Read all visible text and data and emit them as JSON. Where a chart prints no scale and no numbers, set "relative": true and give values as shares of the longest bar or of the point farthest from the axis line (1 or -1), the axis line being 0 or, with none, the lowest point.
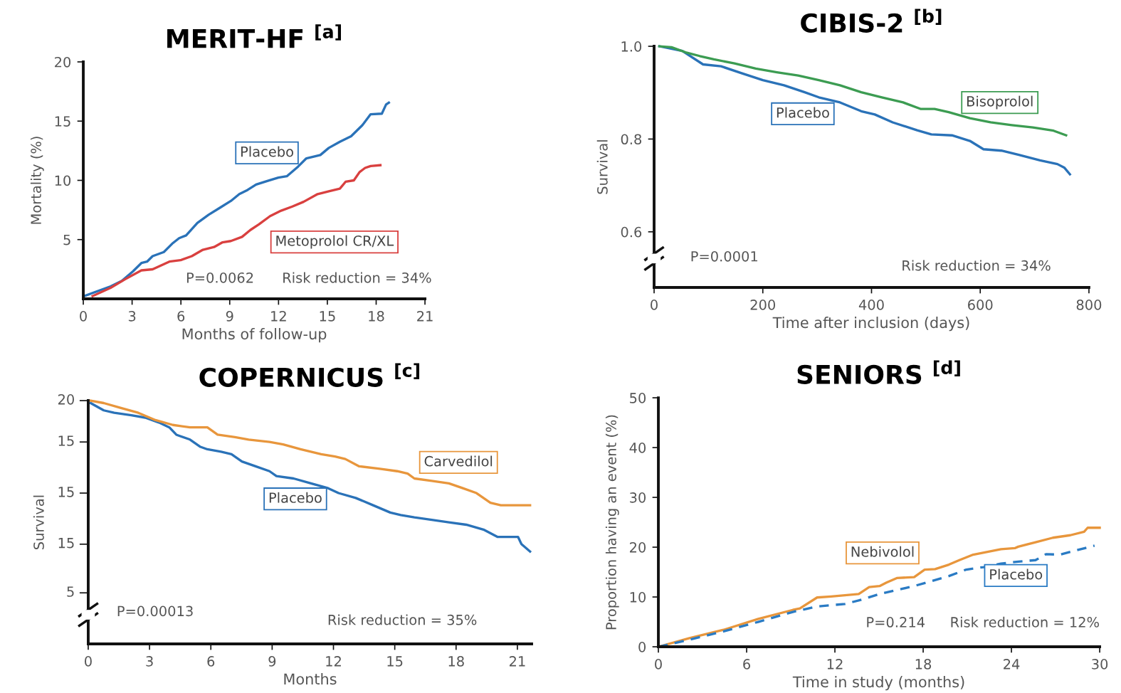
{
  "chart_data": [
    {
      "type": "line",
      "title": "MERIT-HF $^{[a]}$",
      "xlabel": "Months of follow-up",
      "ylabel": "Mortality (%)",
      "xlim": [
        0,
        21
      ],
      "ylim": [
        0,
        20
      ],
      "xticks": [
        0,
        3,
        6,
        9,
        12,
        15,
        18,
        21
      ],
      "yticks": [
        5,
        10,
        15,
        20
      ],
      "grid": false,
      "legend": false,
      "annotations": [
        "P=0.0062",
        "Risk reduction = 34%"
      ],
      "series": [
        {
          "name": "Placebo",
          "color": "#2a72b8",
          "x": [
            0,
            1.68,
            2.37,
            3.06,
            3.57,
            3.92,
            4.26,
            4.95,
            5.46,
            5.89,
            6.32,
            7.01,
            7.7,
            8.38,
            9.07,
            9.59,
            10.1,
            10.62,
            11.31,
            11.99,
            12.51,
            13.2,
            13.71,
            14.57,
            15.09,
            15.77,
            16.46,
            17.15,
            17.66,
            18.35,
            18.61,
            18.78
          ],
          "values": [
            0.2,
            1.05,
            1.51,
            2.33,
            3.02,
            3.14,
            3.6,
            3.95,
            4.65,
            5.12,
            5.35,
            6.4,
            7.09,
            7.67,
            8.26,
            8.84,
            9.19,
            9.65,
            9.95,
            10.23,
            10.35,
            11.16,
            11.86,
            12.14,
            12.74,
            13.26,
            13.72,
            14.65,
            15.58,
            15.63,
            16.4,
            16.56
          ]
        },
        {
          "name": "Metoprolol CR/XL",
          "color": "#d9403f",
          "x": [
            0.57,
            1.68,
            2.54,
            3.57,
            4.26,
            5.29,
            5.98,
            6.67,
            7.35,
            8.04,
            8.56,
            9.07,
            9.76,
            10.27,
            10.79,
            11.48,
            12.16,
            12.85,
            13.54,
            14.4,
            15.09,
            15.77,
            16.12,
            16.63,
            16.98,
            17.32,
            17.66,
            18.26
          ],
          "values": [
            0.23,
            0.93,
            1.63,
            2.4,
            2.49,
            3.14,
            3.26,
            3.6,
            4.14,
            4.37,
            4.77,
            4.88,
            5.23,
            5.81,
            6.28,
            6.98,
            7.44,
            7.79,
            8.19,
            8.84,
            9.07,
            9.3,
            9.88,
            10.0,
            10.7,
            11.05,
            11.21,
            11.28
          ]
        }
      ]
    },
    {
      "type": "line",
      "title": "CIBIS-2 $^{[b]}$",
      "xlabel": "Time after inclusion (days)",
      "ylabel": "Survival",
      "xlim": [
        0,
        800
      ],
      "ylim": [
        0.48,
        1.0
      ],
      "xticks": [
        0,
        200,
        400,
        600,
        800
      ],
      "yticks": [
        0.6,
        0.8,
        {
          "value": 1.0,
          "label": "1.0"
        }
      ],
      "grid": false,
      "legend": false,
      "annotations": [
        "P=0.0001",
        "Risk reduction = 34%"
      ],
      "series": [
        {
          "name": "Placebo",
          "color": "#2a72b8",
          "x": [
            9.7,
            52,
            90,
            123,
            161,
            200,
            239,
            277,
            303,
            342,
            381,
            406,
            439,
            484,
            510,
            548,
            581,
            606,
            639,
            671,
            710,
            742,
            755,
            765
          ],
          "values": [
            1.0,
            0.99,
            0.961,
            0.957,
            0.942,
            0.927,
            0.916,
            0.901,
            0.89,
            0.879,
            0.86,
            0.853,
            0.836,
            0.819,
            0.81,
            0.808,
            0.796,
            0.778,
            0.775,
            0.766,
            0.754,
            0.746,
            0.738,
            0.724
          ]
        },
        {
          "name": "Bisoprolol",
          "color": "#3c9c52",
          "x": [
            9.7,
            32,
            58,
            84,
            110,
            148,
            187,
            226,
            265,
            303,
            342,
            381,
            419,
            458,
            490,
            516,
            542,
            581,
            619,
            658,
            697,
            735,
            758
          ],
          "values": [
            1.0,
            0.998,
            0.987,
            0.979,
            0.972,
            0.963,
            0.952,
            0.944,
            0.937,
            0.927,
            0.916,
            0.901,
            0.89,
            0.879,
            0.865,
            0.865,
            0.858,
            0.845,
            0.836,
            0.83,
            0.825,
            0.818,
            0.808
          ]
        }
      ]
    },
    {
      "type": "line",
      "title": "COPERNICUS $^{[c]}$",
      "xlabel": "Months",
      "ylabel": "Survival",
      "relative": true,
      "xlim": [
        0,
        21.7
      ],
      "xticks": [
        0,
        3,
        6,
        9,
        12,
        15,
        18,
        21
      ],
      "grid": false,
      "legend": false,
      "annotations": [
        "P=0.00013",
        "Risk reduction = 35%",
        "20",
        "15",
        "15",
        "15",
        "5"
      ],
      "series": [
        {
          "name": "Placebo",
          "color": "#2a72b8",
          "x": [
            0.12,
            0.76,
            1.27,
            2.11,
            2.79,
            3.46,
            3.97,
            4.31,
            4.98,
            5.49,
            5.83,
            6.5,
            7.01,
            7.52,
            8.19,
            8.87,
            9.21,
            10.05,
            10.9,
            11.74,
            12.25,
            13.09,
            13.94,
            14.78,
            15.29,
            15.96,
            16.81,
            17.65,
            18.5,
            19.34,
            20.02,
            21.03,
            21.2,
            21.62
          ],
          "values": [
            0.99,
            0.96,
            0.95,
            0.94,
            0.93,
            0.91,
            0.89,
            0.86,
            0.84,
            0.81,
            0.8,
            0.79,
            0.78,
            0.75,
            0.73,
            0.71,
            0.69,
            0.68,
            0.66,
            0.64,
            0.62,
            0.6,
            0.57,
            0.54,
            0.53,
            0.52,
            0.51,
            0.5,
            0.49,
            0.47,
            0.44,
            0.44,
            0.41,
            0.38
          ]
        },
        {
          "name": "Carvedilol",
          "color": "#e8963c",
          "x": [
            0.12,
            0.76,
            1.6,
            2.45,
            3.29,
            4.14,
            4.98,
            5.83,
            6.33,
            7.18,
            7.85,
            8.87,
            9.54,
            10.39,
            11.4,
            12.08,
            12.58,
            13.26,
            14.27,
            15.12,
            15.63,
            15.96,
            16.81,
            17.65,
            18.33,
            19.0,
            19.34,
            19.68,
            20.19,
            21.62
          ],
          "values": [
            1.0,
            0.99,
            0.97,
            0.95,
            0.92,
            0.9,
            0.89,
            0.89,
            0.86,
            0.85,
            0.84,
            0.83,
            0.82,
            0.8,
            0.78,
            0.77,
            0.76,
            0.73,
            0.72,
            0.71,
            0.7,
            0.68,
            0.67,
            0.66,
            0.64,
            0.62,
            0.6,
            0.58,
            0.57,
            0.57
          ]
        }
      ]
    },
    {
      "type": "line",
      "title": "SENIORS $^{[d]}$",
      "xlabel": "Time in study (months)",
      "ylabel": "Proportion having an event (%)",
      "xlim": [
        0,
        30
      ],
      "ylim": [
        0,
        50
      ],
      "xticks": [
        0,
        6,
        12,
        18,
        24,
        30
      ],
      "yticks": [
        0,
        10,
        20,
        30,
        40,
        50
      ],
      "grid": false,
      "legend": false,
      "annotations": [
        "P=0.214",
        "Risk reduction = 12%"
      ],
      "series": [
        {
          "name": "Nebivolol",
          "color": "#e8963c",
          "line_style": "solid",
          "x": [
            0,
            2.07,
            4.43,
            6.79,
            9.14,
            9.62,
            10.79,
            11.74,
            13.62,
            14.33,
            15.04,
            15.51,
            16.21,
            17.39,
            18.1,
            18.81,
            19.75,
            20.46,
            21.4,
            23.29,
            24.23,
            24.46,
            25.64,
            26.82,
            28.0,
            28.94,
            29.18,
            30.0
          ],
          "values": [
            0,
            1.7,
            3.4,
            5.6,
            7.4,
            7.7,
            9.9,
            10.1,
            10.6,
            12.0,
            12.2,
            12.9,
            13.8,
            14.0,
            15.5,
            15.6,
            16.5,
            17.4,
            18.5,
            19.6,
            19.8,
            20.1,
            21.0,
            21.9,
            22.4,
            23.1,
            23.9,
            23.9
          ]
        },
        {
          "name": "Placebo",
          "color": "#2a7bc4",
          "line_style": "dashed",
          "x": [
            0,
            2.07,
            4.43,
            6.79,
            9.14,
            10.79,
            12.68,
            13.62,
            15.04,
            17.39,
            19.75,
            20.93,
            22.11,
            23.29,
            24.46,
            25.64,
            26.35,
            27.29,
            28.71,
            29.65
          ],
          "values": [
            0,
            1.4,
            3.1,
            5.0,
            7.0,
            8.1,
            8.6,
            9.3,
            10.6,
            12.2,
            14.2,
            15.5,
            16.0,
            16.7,
            17.1,
            17.4,
            18.6,
            18.5,
            19.6,
            20.3
          ]
        }
      ]
    }
  ]
}
